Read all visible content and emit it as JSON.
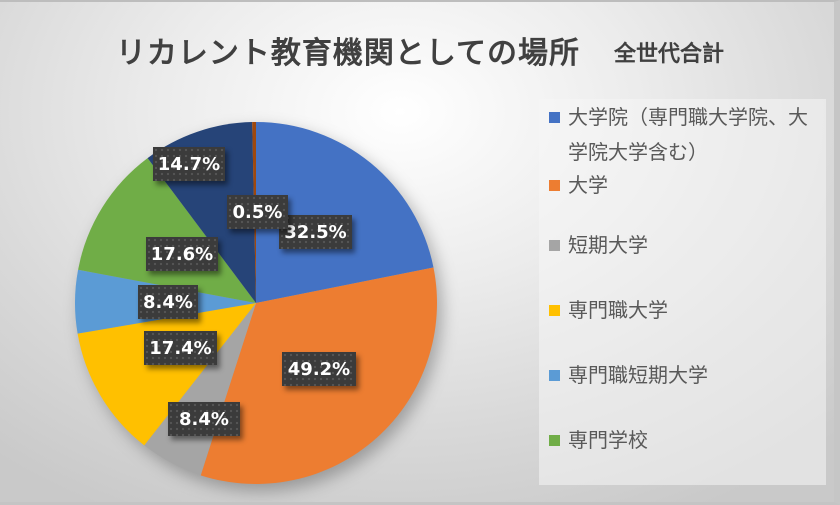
{
  "chart": {
    "title": "リカレント教育機関としての場所",
    "subtitle": "全世代合計"
  },
  "legend": {
    "items": [
      {
        "label": "大学院（専門職大学院、大学院大学含む）",
        "color": "#4472C4"
      },
      {
        "label": "大学",
        "color": "#ED7D31"
      },
      {
        "label": "短期大学",
        "color": "#A5A5A5"
      },
      {
        "label": "専門職大学",
        "color": "#FFC000"
      },
      {
        "label": "専門職短期大学",
        "color": "#5B9BD5"
      },
      {
        "label": "専門学校",
        "color": "#70AD47"
      }
    ]
  },
  "chart_data": {
    "type": "pie",
    "title": "リカレント教育機関としての場所　全世代合計",
    "categories": [
      "大学院（専門職大学院、大学院大学含む）",
      "大学",
      "短期大学",
      "専門職大学",
      "専門職短期大学",
      "専門学校",
      "",
      ""
    ],
    "values": [
      32.5,
      49.2,
      8.4,
      17.4,
      8.4,
      17.6,
      14.7,
      0.5
    ],
    "labels": [
      "32.5%",
      "49.2%",
      "8.4%",
      "17.4%",
      "8.4%",
      "17.6%",
      "14.7%",
      "0.5%"
    ],
    "colors": [
      "#4472C4",
      "#ED7D31",
      "#A5A5A5",
      "#FFC000",
      "#5B9BD5",
      "#70AD47",
      "#264478",
      "#9E480E"
    ],
    "start_angle_deg": 0,
    "direction": "clockwise",
    "legend_position": "right",
    "data_labels": "inside, dark boxes"
  }
}
